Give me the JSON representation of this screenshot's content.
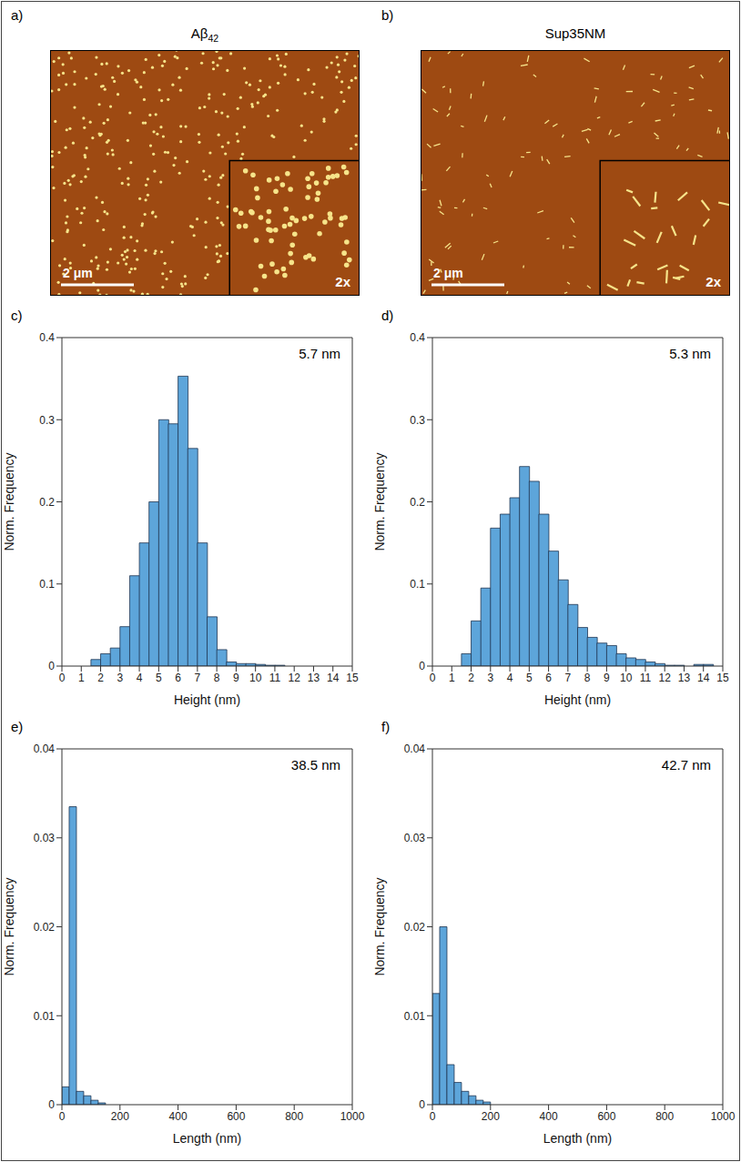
{
  "images": [
    {
      "letter": "a)",
      "title": "Aβ42",
      "scale_bar_label": "2 μm",
      "inset_label": "2x"
    },
    {
      "letter": "b)",
      "title": "Sup35NM",
      "scale_bar_label": "2 μm",
      "inset_label": "2x"
    }
  ],
  "chart_data": [
    {
      "type": "histogram",
      "letter": "c)",
      "annotation": "5.7 nm",
      "x_label": "Height (nm)",
      "y_label": "Norm. Frequency",
      "color": "#5DA5DA",
      "bins": [
        1.5,
        2,
        2.5,
        3,
        3.5,
        4,
        4.5,
        5,
        5.5,
        6,
        6.5,
        7,
        7.5,
        8,
        8.5,
        9,
        9.5,
        10,
        10.5,
        11,
        11.5
      ],
      "values": [
        0.008,
        0.015,
        0.022,
        0.048,
        0.11,
        0.15,
        0.2,
        0.3,
        0.295,
        0.353,
        0.265,
        0.15,
        0.06,
        0.02,
        0.005,
        0.003,
        0.003,
        0.002,
        0.001,
        0.001
      ],
      "xlim": [
        0,
        15
      ],
      "xticks": [
        0,
        1,
        2,
        3,
        4,
        5,
        6,
        7,
        8,
        9,
        10,
        11,
        12,
        13,
        14,
        15
      ],
      "ylim": [
        0,
        0.4
      ],
      "yticks": [
        0,
        0.1,
        0.2,
        0.3,
        0.4
      ]
    },
    {
      "type": "histogram",
      "letter": "d)",
      "annotation": "5.3 nm",
      "x_label": "Height (nm)",
      "y_label": "Norm. Frequency",
      "color": "#5DA5DA",
      "bins": [
        1.5,
        2,
        2.5,
        3,
        3.5,
        4,
        4.5,
        5,
        5.5,
        6,
        6.5,
        7,
        7.5,
        8,
        8.5,
        9,
        9.5,
        10,
        10.5,
        11,
        11.5,
        12,
        12.5,
        13,
        13.5,
        14,
        14.5
      ],
      "values": [
        0.015,
        0.055,
        0.095,
        0.168,
        0.185,
        0.205,
        0.243,
        0.225,
        0.185,
        0.14,
        0.105,
        0.075,
        0.047,
        0.035,
        0.028,
        0.025,
        0.015,
        0.01,
        0.008,
        0.005,
        0.003,
        0.001,
        0.001,
        0,
        0.002,
        0.002
      ],
      "xlim": [
        0,
        15
      ],
      "xticks": [
        0,
        1,
        2,
        3,
        4,
        5,
        6,
        7,
        8,
        9,
        10,
        11,
        12,
        13,
        14,
        15
      ],
      "ylim": [
        0,
        0.4
      ],
      "yticks": [
        0,
        0.1,
        0.2,
        0.3,
        0.4
      ]
    },
    {
      "type": "histogram",
      "letter": "e)",
      "annotation": "38.5 nm",
      "x_label": "Length (nm)",
      "y_label": "Norm. Frequency",
      "color": "#5DA5DA",
      "bins": [
        0,
        25,
        50,
        75,
        100,
        125,
        150
      ],
      "values": [
        0.002,
        0.0335,
        0.0015,
        0.001,
        0.0005,
        0.0002
      ],
      "xlim": [
        0,
        1000
      ],
      "xticks": [
        0,
        200,
        400,
        600,
        800,
        1000
      ],
      "ylim": [
        0,
        0.04
      ],
      "yticks": [
        0,
        0.01,
        0.02,
        0.03,
        0.04
      ]
    },
    {
      "type": "histogram",
      "letter": "f)",
      "annotation": "42.7 nm",
      "x_label": "Length (nm)",
      "y_label": "Norm. Frequency",
      "color": "#5DA5DA",
      "bins": [
        0,
        25,
        50,
        75,
        100,
        125,
        150,
        175,
        200
      ],
      "values": [
        0.0125,
        0.02,
        0.0045,
        0.0025,
        0.0015,
        0.001,
        0.0005,
        0.0003
      ],
      "xlim": [
        0,
        1000
      ],
      "xticks": [
        0,
        200,
        400,
        600,
        800,
        1000
      ],
      "ylim": [
        0,
        0.04
      ],
      "yticks": [
        0,
        0.01,
        0.02,
        0.03,
        0.04
      ]
    }
  ]
}
